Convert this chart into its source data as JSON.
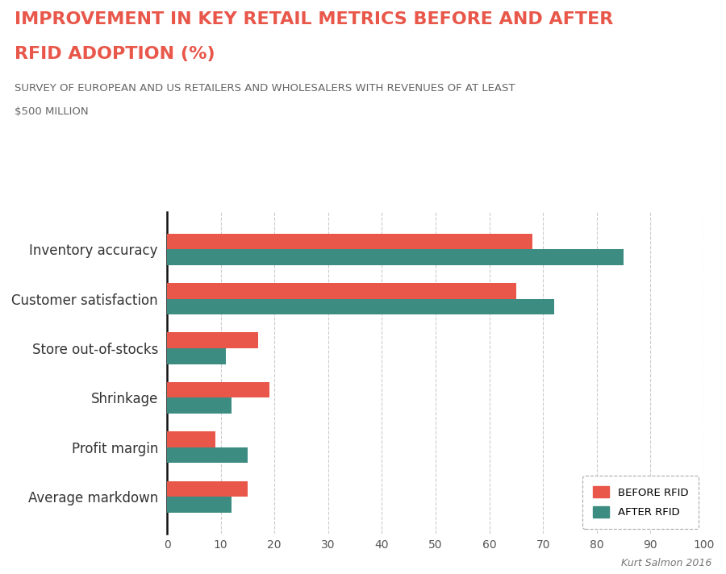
{
  "title_line1": "IMPROVEMENT IN KEY RETAIL METRICS BEFORE AND AFTER",
  "title_line2": "RFID ADOPTION (%)",
  "subtitle_line1": "SURVEY OF EUROPEAN AND US RETAILERS AND WHOLESALERS WITH REVENUES OF AT LEAST",
  "subtitle_line2": "$500 MILLION",
  "categories": [
    "Inventory accuracy",
    "Customer satisfaction",
    "Store out-of-stocks",
    "Shrinkage",
    "Profit margin",
    "Average markdown"
  ],
  "before_rfid": [
    68,
    65,
    17,
    19,
    9,
    15
  ],
  "after_rfid": [
    85,
    72,
    11,
    12,
    15,
    12
  ],
  "before_color": "#E8574A",
  "after_color": "#3D8C82",
  "title_color": "#E8574A",
  "subtitle_color": "#666666",
  "bg_color": "#FFFFFF",
  "xlim": [
    0,
    100
  ],
  "xticks": [
    0,
    10,
    20,
    30,
    40,
    50,
    60,
    70,
    80,
    90,
    100
  ],
  "bar_height": 0.32,
  "legend_before": "BEFORE RFID",
  "legend_after": "AFTER RFID",
  "credit": "Kurt Salmon 2016",
  "label_fontsize": 12,
  "title_fontsize": 16,
  "subtitle_fontsize": 9.5,
  "tick_fontsize": 10,
  "credit_fontsize": 9
}
